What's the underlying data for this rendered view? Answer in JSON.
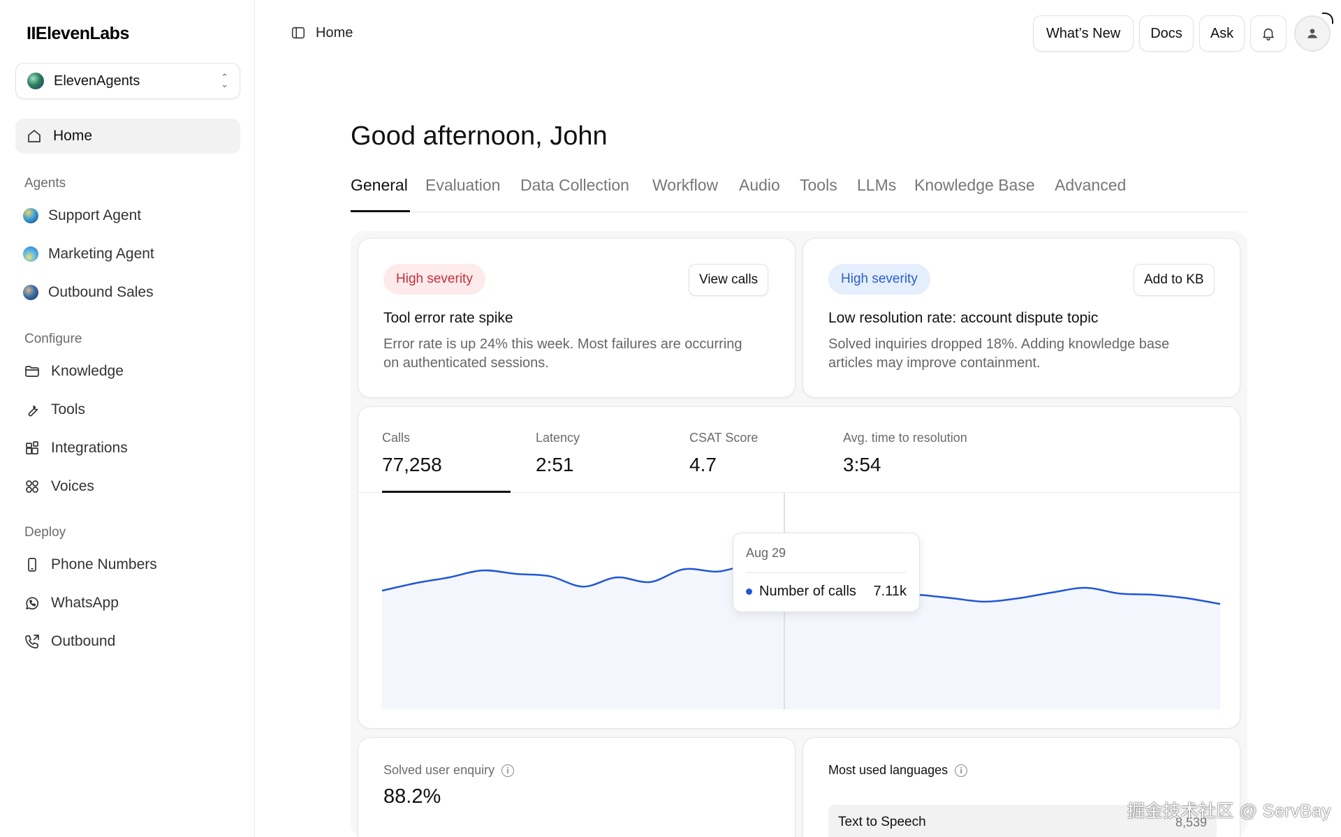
{
  "app": {
    "logo": "IIElevenLabs",
    "workspace": "ElevenAgents",
    "breadcrumb": "Home"
  },
  "sidebar": {
    "home": "Home",
    "sections": [
      {
        "title": "Agents",
        "items": [
          {
            "label": "Support Agent",
            "icon": "agent-orb-icon"
          },
          {
            "label": "Marketing Agent",
            "icon": "agent-orb-icon"
          },
          {
            "label": "Outbound Sales",
            "icon": "agent-orb-icon"
          }
        ]
      },
      {
        "title": "Configure",
        "items": [
          {
            "label": "Knowledge",
            "icon": "folder-icon"
          },
          {
            "label": "Tools",
            "icon": "wrench-icon"
          },
          {
            "label": "Integrations",
            "icon": "integrations-icon"
          },
          {
            "label": "Voices",
            "icon": "voices-icon"
          }
        ]
      },
      {
        "title": "Deploy",
        "items": [
          {
            "label": "Phone Numbers",
            "icon": "phone-icon"
          },
          {
            "label": "WhatsApp",
            "icon": "whatsapp-icon"
          },
          {
            "label": "Outbound",
            "icon": "phone-outgoing-icon"
          }
        ]
      }
    ]
  },
  "topbar": {
    "whats_new": "What’s New",
    "docs": "Docs",
    "ask": "Ask"
  },
  "main": {
    "greeting": "Good afternoon, John",
    "tabs": [
      "General",
      "Evaluation",
      "Data Collection",
      "Workflow",
      "Audio",
      "Tools",
      "LLMs",
      "Knowledge Base",
      "Advanced"
    ],
    "active_tab": "General"
  },
  "alerts": [
    {
      "severity": "High severity",
      "action": "View calls",
      "title": "Tool error rate spike",
      "description": "Error rate is up 24% this week. Most failures are occurring on authenticated sessions.",
      "color": "#c4313e"
    },
    {
      "severity": "High severity",
      "action": "Add to KB",
      "title": "Low resolution rate: account dispute topic",
      "description": "Solved inquiries dropped 18%. Adding knowledge base articles may improve containment.",
      "color": "#2a5fc8"
    }
  ],
  "metrics": [
    {
      "label": "Calls",
      "value": "77,258"
    },
    {
      "label": "Latency",
      "value": "2:51"
    },
    {
      "label": "CSAT Score",
      "value": "4.7"
    },
    {
      "label": "Avg. time to resolution",
      "value": "3:54"
    }
  ],
  "chart_data": {
    "type": "area",
    "series": [
      {
        "name": "Number of calls",
        "values": [
          7.05,
          7.18,
          7.28,
          7.4,
          7.34,
          7.3,
          7.12,
          7.28,
          7.2,
          7.42,
          7.38,
          7.46,
          7.11,
          6.9,
          6.95,
          7.0,
          6.98,
          6.92,
          6.86,
          6.92,
          7.02,
          7.1,
          7.0,
          6.98,
          6.92,
          6.82
        ]
      }
    ],
    "highlight_index": 12,
    "color": "#1f57d6",
    "tooltip": {
      "date": "Aug 29",
      "label": "Number of calls",
      "value": "7.11k"
    }
  },
  "bottom": {
    "solved": {
      "title": "Solved user enquiry",
      "value": "88.2%"
    },
    "languages": {
      "title": "Most used languages",
      "rows": [
        {
          "label": "Text to Speech",
          "count": "8,539"
        }
      ]
    }
  },
  "watermark": "掘金技术社区 @ ServBay"
}
